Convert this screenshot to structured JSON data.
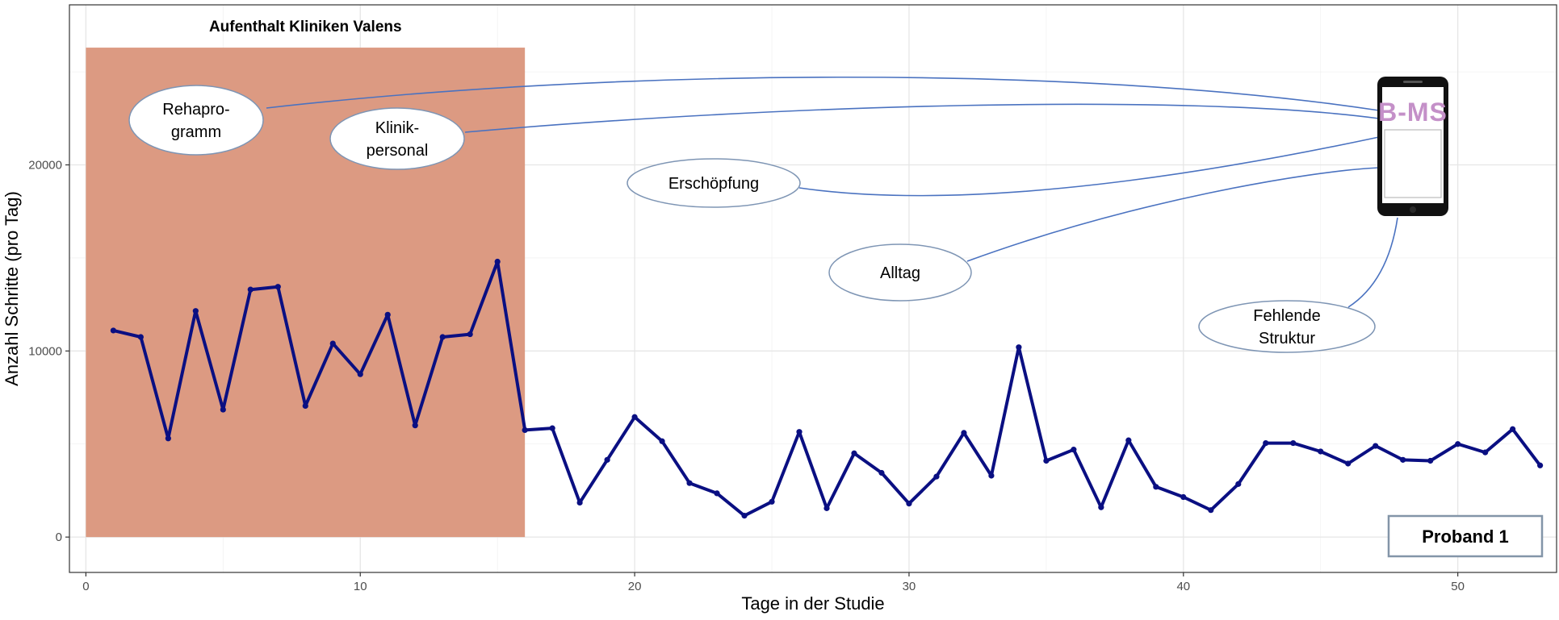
{
  "chart_data": {
    "type": "line",
    "xlabel": "Tage in der Studie",
    "ylabel": "Anzahl Schritte (pro Tag)",
    "xlim": [
      -0.6,
      53.6
    ],
    "ylim": [
      -1900,
      28600
    ],
    "x_ticks": [
      0,
      10,
      20,
      30,
      40,
      50
    ],
    "y_ticks": [
      0,
      10000,
      20000
    ],
    "x_tick_labels": [
      "0",
      "10",
      "20",
      "30",
      "40",
      "50"
    ],
    "y_tick_labels": [
      "0",
      "10000",
      "20000"
    ],
    "grid": true,
    "series": [
      {
        "color": "#0a0f82",
        "x": [
          1,
          2,
          3,
          4,
          5,
          6,
          7,
          8,
          9,
          10,
          11,
          12,
          13,
          14,
          15,
          16,
          17,
          18,
          19,
          20,
          21,
          22,
          23,
          24,
          25,
          26,
          27,
          28,
          29,
          30,
          31,
          32,
          33,
          34,
          35,
          36,
          37,
          38,
          39,
          40,
          41,
          42,
          43,
          44,
          45,
          46,
          47,
          48,
          49,
          50,
          51,
          52,
          53
        ],
        "values": [
          11100,
          10750,
          5300,
          12150,
          6850,
          13300,
          13450,
          7050,
          10400,
          8750,
          11950,
          6000,
          10750,
          10900,
          14800,
          5750,
          5850,
          1850,
          4150,
          6450,
          5150,
          2900,
          2350,
          1150,
          1900,
          5650,
          1550,
          4500,
          3450,
          1800,
          3250,
          5600,
          3300,
          10200,
          4100,
          4700,
          1600,
          5200,
          2700,
          2150,
          1450,
          2850,
          5050,
          5050,
          4600,
          3950,
          4900,
          4150,
          4100,
          5000,
          4550,
          5800,
          3850
        ]
      }
    ],
    "shaded_region": {
      "label": "Aufenthalt Kliniken Valens",
      "x": [
        0,
        16
      ],
      "y": [
        0,
        26300
      ],
      "color": "#dc9a82"
    },
    "annotations": [
      {
        "id": "rehaprogramm",
        "lines": [
          "Rehapro-",
          "gramm"
        ]
      },
      {
        "id": "klinikpersonal",
        "lines": [
          "Klinik-",
          "personal"
        ]
      },
      {
        "id": "erschoepfung",
        "lines": [
          "Erschöpfung"
        ]
      },
      {
        "id": "alltag",
        "lines": [
          "Alltag"
        ]
      },
      {
        "id": "fehlende",
        "lines": [
          "Fehlende",
          "Struktur"
        ]
      }
    ],
    "app_logo_text": "B-MS",
    "badge": "Proband 1",
    "colors": {
      "line": "#0a0f82",
      "shade": "#dc9a82",
      "connector": "#4a72c0",
      "bubble_border": "#7e95b4",
      "badge_border": "#8395a8",
      "grid": "#e6e6e6"
    }
  }
}
